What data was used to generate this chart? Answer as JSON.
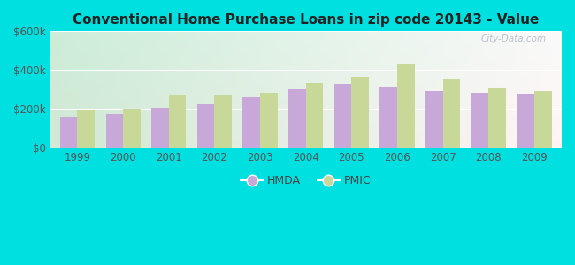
{
  "title": "Conventional Home Purchase Loans in zip code 20143 - Value",
  "years": [
    1999,
    2000,
    2001,
    2002,
    2003,
    2004,
    2005,
    2006,
    2007,
    2008,
    2009
  ],
  "hmda": [
    155000,
    172000,
    205000,
    222000,
    262000,
    300000,
    330000,
    315000,
    290000,
    285000,
    278000
  ],
  "pmic": [
    193000,
    200000,
    270000,
    268000,
    285000,
    332000,
    365000,
    430000,
    352000,
    308000,
    290000
  ],
  "hmda_color": "#c8a8d8",
  "pmic_color": "#c8d898",
  "ylim": [
    0,
    600000
  ],
  "yticks": [
    0,
    200000,
    400000,
    600000
  ],
  "ytick_labels": [
    "$0",
    "$200k",
    "$400k",
    "$600k"
  ],
  "bg_outer": "#00e0e0",
  "watermark": "City-Data.com",
  "bar_width": 0.38,
  "legend_hmda": "HMDA",
  "legend_pmic": "PMIC",
  "title_fontsize": 11,
  "tick_fontsize": 8.5,
  "grid_color": "#ffffff",
  "gradient_top_left": "#c8ecd8",
  "gradient_bottom_right": "#f0f8f0"
}
